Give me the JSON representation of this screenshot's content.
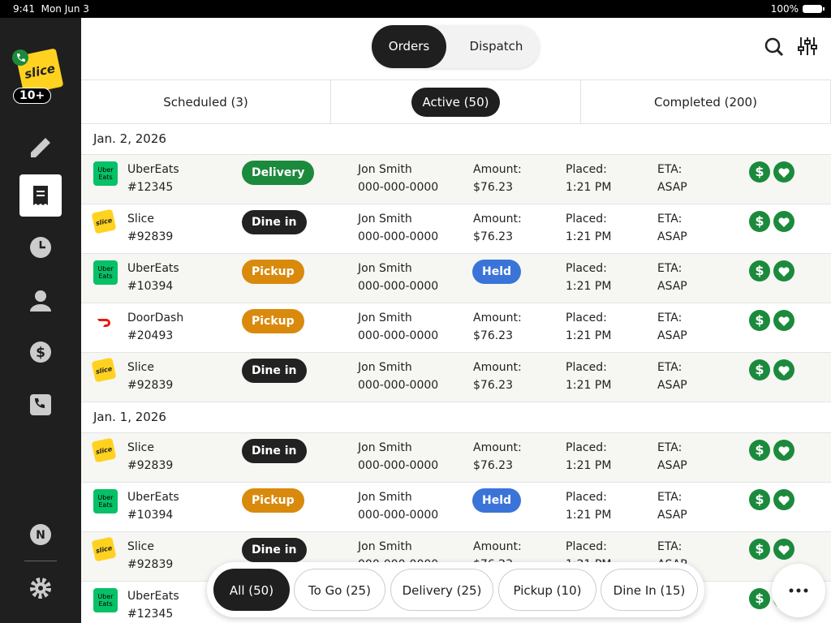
{
  "status_bar": {
    "time": "9:41",
    "date": "Mon Jun 3",
    "battery": "100%"
  },
  "sidebar": {
    "logo": "slice",
    "badge": "10+",
    "avatar": "N"
  },
  "header": {
    "tabs": [
      "Orders",
      "Dispatch"
    ],
    "active_tab": 0
  },
  "subtabs": {
    "items": [
      "Scheduled (3)",
      "Active (50)",
      "Completed (200)"
    ],
    "active": 1
  },
  "icons": {
    "dollar": "$"
  },
  "logos": {
    "UberEats": {
      "text": "Uber Eats",
      "color": "#06c167"
    },
    "Slice": {
      "text": "slice",
      "color": "#ffd21f"
    },
    "DoorDash": {
      "color": "#ffffff"
    }
  },
  "badge_colors": {
    "Delivery": "#1b8a3c",
    "Dine in": "#222222",
    "Pickup": "#d98a0c",
    "Held": "#3b74d8"
  },
  "groups": [
    {
      "date": "Jan. 2, 2026",
      "orders": [
        {
          "platform": "UberEats",
          "id": "#12345",
          "type": "Delivery",
          "name": "Jon Smith",
          "phone": "000-000-0000",
          "amount_label": "Amount:",
          "amount": "$76.23",
          "placed_label": "Placed:",
          "placed": "1:21 PM",
          "eta_label": "ETA:",
          "eta": "ASAP"
        },
        {
          "platform": "Slice",
          "id": "#92839",
          "type": "Dine in",
          "name": "Jon Smith",
          "phone": "000-000-0000",
          "amount_label": "Amount:",
          "amount": "$76.23",
          "placed_label": "Placed:",
          "placed": "1:21 PM",
          "eta_label": "ETA:",
          "eta": "ASAP"
        },
        {
          "platform": "UberEats",
          "id": "#10394",
          "type": "Pickup",
          "name": "Jon Smith",
          "phone": "000-000-0000",
          "status": "Held",
          "placed_label": "Placed:",
          "placed": "1:21 PM",
          "eta_label": "ETA:",
          "eta": "ASAP"
        },
        {
          "platform": "DoorDash",
          "id": "#20493",
          "type": "Pickup",
          "name": "Jon Smith",
          "phone": "000-000-0000",
          "amount_label": "Amount:",
          "amount": "$76.23",
          "placed_label": "Placed:",
          "placed": "1:21 PM",
          "eta_label": "ETA:",
          "eta": "ASAP"
        },
        {
          "platform": "Slice",
          "id": "#92839",
          "type": "Dine in",
          "name": "Jon Smith",
          "phone": "000-000-0000",
          "amount_label": "Amount:",
          "amount": "$76.23",
          "placed_label": "Placed:",
          "placed": "1:21 PM",
          "eta_label": "ETA:",
          "eta": "ASAP"
        }
      ]
    },
    {
      "date": "Jan. 1, 2026",
      "orders": [
        {
          "platform": "Slice",
          "id": "#92839",
          "type": "Dine in",
          "name": "Jon Smith",
          "phone": "000-000-0000",
          "amount_label": "Amount:",
          "amount": "$76.23",
          "placed_label": "Placed:",
          "placed": "1:21 PM",
          "eta_label": "ETA:",
          "eta": "ASAP"
        },
        {
          "platform": "UberEats",
          "id": "#10394",
          "type": "Pickup",
          "name": "Jon Smith",
          "phone": "000-000-0000",
          "status": "Held",
          "placed_label": "Placed:",
          "placed": "1:21 PM",
          "eta_label": "ETA:",
          "eta": "ASAP"
        },
        {
          "platform": "Slice",
          "id": "#92839",
          "type": "Dine in",
          "name": "Jon Smith",
          "phone": "000-000-0000",
          "amount_label": "Amount:",
          "amount": "$76.23",
          "placed_label": "Placed:",
          "placed": "1:21 PM",
          "eta_label": "ETA:",
          "eta": "ASAP"
        },
        {
          "platform": "UberEats",
          "id": "#12345"
        }
      ]
    }
  ],
  "filters": {
    "items": [
      "All (50)",
      "To Go (25)",
      "Delivery (25)",
      "Pickup (10)",
      "Dine In (15)"
    ],
    "active": 0
  }
}
